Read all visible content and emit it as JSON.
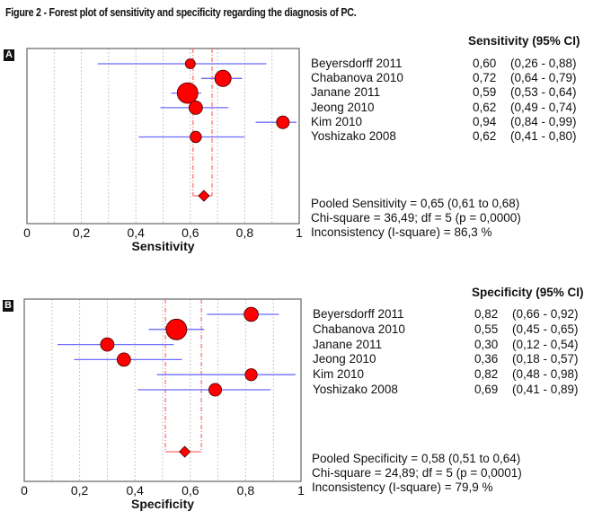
{
  "figure_title": "Figure 2 - Forest plot of sensitivity and specificity regarding the diagnosis of PC.",
  "chart_data": [
    {
      "type": "forest",
      "panel_label": "A",
      "title": "",
      "xlabel": "Sensitivity",
      "ylabel": "",
      "xlim": [
        0,
        1
      ],
      "x_ticks": [
        0,
        0.2,
        0.4,
        0.6,
        0.8,
        1
      ],
      "x_tick_labels": [
        "0",
        "0,2",
        "0,4",
        "0,6",
        "0,8",
        "1"
      ],
      "grid": "vertical-dotted",
      "column_header": "Sensitivity (95% CI)",
      "studies": [
        {
          "name": "Beyersdorff 2011",
          "estimate": 0.6,
          "ci_low": 0.26,
          "ci_high": 0.88,
          "estimate_label": "0,60",
          "ci_label": "(0,26 - 0,88)",
          "weight": 0.25
        },
        {
          "name": "Chabanova 2010",
          "estimate": 0.72,
          "ci_low": 0.64,
          "ci_high": 0.79,
          "estimate_label": "0,72",
          "ci_label": "(0,64 - 0,79)",
          "weight": 0.7
        },
        {
          "name": "Janane 2011",
          "estimate": 0.59,
          "ci_low": 0.53,
          "ci_high": 0.64,
          "estimate_label": "0,59",
          "ci_label": "(0,53 - 0,64)",
          "weight": 1.0
        },
        {
          "name": "Jeong 2010",
          "estimate": 0.62,
          "ci_low": 0.49,
          "ci_high": 0.74,
          "estimate_label": "0,62",
          "ci_label": "(0,49 - 0,74)",
          "weight": 0.5
        },
        {
          "name": "Kim 2010",
          "estimate": 0.94,
          "ci_low": 0.84,
          "ci_high": 0.99,
          "estimate_label": "0,94",
          "ci_label": "(0,84 - 0,99)",
          "weight": 0.45
        },
        {
          "name": "Yoshizako 2008",
          "estimate": 0.62,
          "ci_low": 0.41,
          "ci_high": 0.8,
          "estimate_label": "0,62",
          "ci_label": "(0,41 - 0,80)",
          "weight": 0.35
        }
      ],
      "pooled": {
        "estimate": 0.65,
        "ci_low": 0.61,
        "ci_high": 0.68
      },
      "stats_lines": [
        "Pooled Sensitivity = 0,65 (0,61 to 0,68)",
        "Chi-square = 36,49; df =  5 (p = 0,0000)",
        "Inconsistency (I-square) = 86,3 %"
      ]
    },
    {
      "type": "forest",
      "panel_label": "B",
      "title": "",
      "xlabel": "Specificity",
      "ylabel": "",
      "xlim": [
        0,
        1
      ],
      "x_ticks": [
        0,
        0.2,
        0.4,
        0.6,
        0.8,
        1
      ],
      "x_tick_labels": [
        "0",
        "0,2",
        "0,4",
        "0,6",
        "0,8",
        "1"
      ],
      "grid": "vertical-dotted",
      "column_header": "Specificity (95% CI)",
      "studies": [
        {
          "name": "Beyersdorff 2011",
          "estimate": 0.82,
          "ci_low": 0.66,
          "ci_high": 0.92,
          "estimate_label": "0,82",
          "ci_label": "(0,66 - 0,92)",
          "weight": 0.55
        },
        {
          "name": "Chabanova 2010",
          "estimate": 0.55,
          "ci_low": 0.45,
          "ci_high": 0.65,
          "estimate_label": "0,55",
          "ci_label": "(0,45 - 0,65)",
          "weight": 1.0
        },
        {
          "name": "Janane 2011",
          "estimate": 0.3,
          "ci_low": 0.12,
          "ci_high": 0.54,
          "estimate_label": "0,30",
          "ci_label": "(0,12 - 0,54)",
          "weight": 0.5
        },
        {
          "name": "Jeong 2010",
          "estimate": 0.36,
          "ci_low": 0.18,
          "ci_high": 0.57,
          "estimate_label": "0,36",
          "ci_label": "(0,18 - 0,57)",
          "weight": 0.5
        },
        {
          "name": "Kim 2010",
          "estimate": 0.82,
          "ci_low": 0.48,
          "ci_high": 0.98,
          "estimate_label": "0,82",
          "ci_label": "(0,48 - 0,98)",
          "weight": 0.4
        },
        {
          "name": "Yoshizako 2008",
          "estimate": 0.69,
          "ci_low": 0.41,
          "ci_high": 0.89,
          "estimate_label": "0,69",
          "ci_label": "(0,41 - 0,89)",
          "weight": 0.45
        }
      ],
      "pooled": {
        "estimate": 0.58,
        "ci_low": 0.51,
        "ci_high": 0.64
      },
      "stats_lines": [
        "Pooled Specificity = 0,58 (0,51 to 0,64)",
        "Chi-square = 24,89; df =  5 (p = 0,0001)",
        "Inconsistency (I-square) = 79,9 %"
      ]
    }
  ],
  "colors": {
    "marker_fill": "#ff0000",
    "ci_line": "#6b6bff",
    "pooled_ci_line": "#ff6b6b",
    "grid": "#c8c8c8",
    "frame": "#707070"
  }
}
